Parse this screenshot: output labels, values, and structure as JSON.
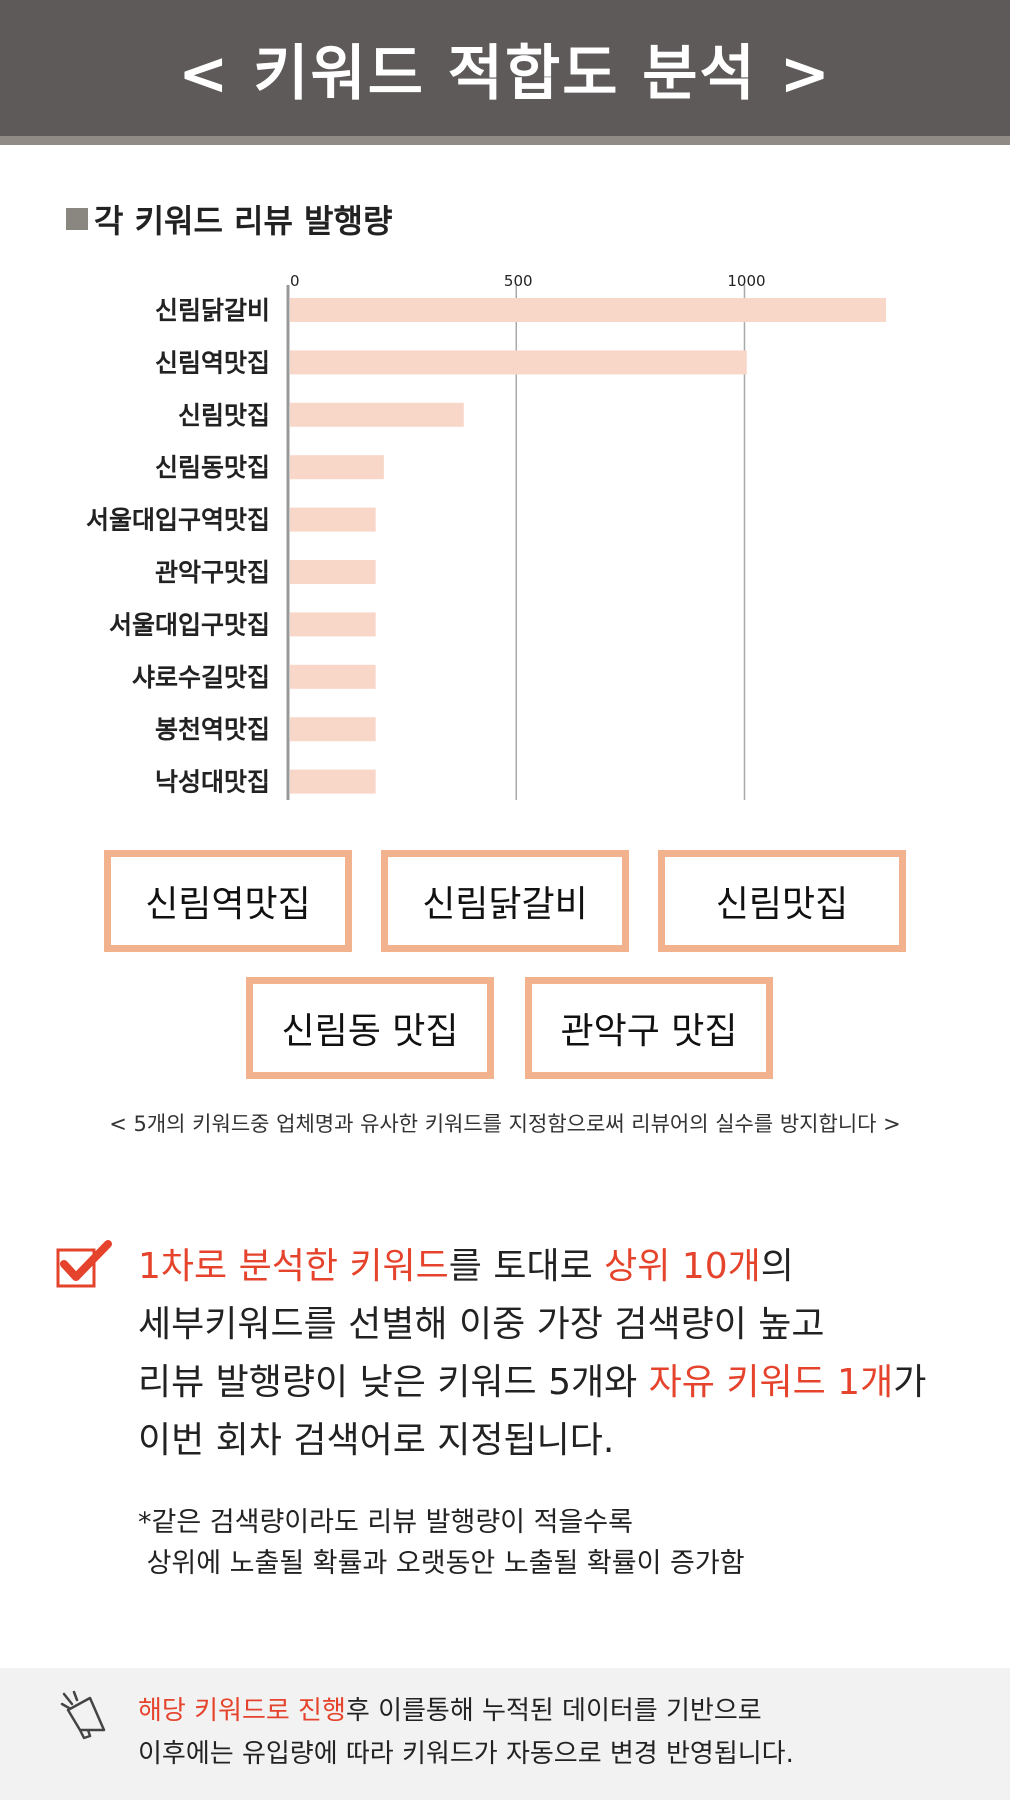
{
  "header": {
    "title": "< 키워드 적합도 분석 >"
  },
  "section": {
    "title": "각 키워드 리뷰 발행량"
  },
  "chart_data": {
    "type": "bar",
    "orientation": "horizontal",
    "categories": [
      "신림닭갈비",
      "신림역맛집",
      "신림맛집",
      "신림동맛집",
      "서울대입구역맛집",
      "관악구맛집",
      "서울대입구맛집",
      "샤로수길맛집",
      "봉천역맛집",
      "낙성대맛집"
    ],
    "values": [
      1310,
      1005,
      385,
      210,
      192,
      192,
      192,
      192,
      192,
      192
    ],
    "xlim": [
      0,
      1310
    ],
    "xticks": [
      0,
      500,
      1000
    ],
    "grid": true,
    "bar_color": "#f8d6c8",
    "title": "",
    "xlabel": "",
    "ylabel": ""
  },
  "keywords": [
    "신림역맛집",
    "신림닭갈비",
    "신림맛집",
    "신림동 맛집",
    "관악구 맛집"
  ],
  "note": "< 5개의 키워드중 업체명과 유사한 키워드를 지정함으로써 리뷰어의 실수를 방지합니다 >",
  "main": {
    "l1a": "1차로 분석한 키워드",
    "l1b": "를 토대로 ",
    "l1c": "상위 10개",
    "l1d": "의",
    "l2": "세부키워드를 선별해 이중 가장 검색량이 높고",
    "l3a": "리뷰 발행량이 낮은 키워드 5개와 ",
    "l3b": "자유 키워드 1개",
    "l3c": "가",
    "l4": "이번 회차 검색어로 지정됩니다."
  },
  "footnote": {
    "l1": "*같은 검색량이라도 리뷰 발행량이 적을수록",
    "l2": " 상위에 노출될 확률과 오랫동안 노출될 확률이 증가함"
  },
  "bottom": {
    "l1a": "해당 키워드로 진행",
    "l1b": "후 이를통해 누적된 데이터를 기반으로",
    "l2": "이후에는 유입량에 따라 키워드가 자동으로 변경 반영됩니다."
  },
  "colors": {
    "accent": "#e5432c",
    "box_border": "#f2b28e",
    "header_bg": "#5d5a59"
  },
  "icons": {
    "check": "check-icon",
    "megaphone": "megaphone-icon"
  }
}
